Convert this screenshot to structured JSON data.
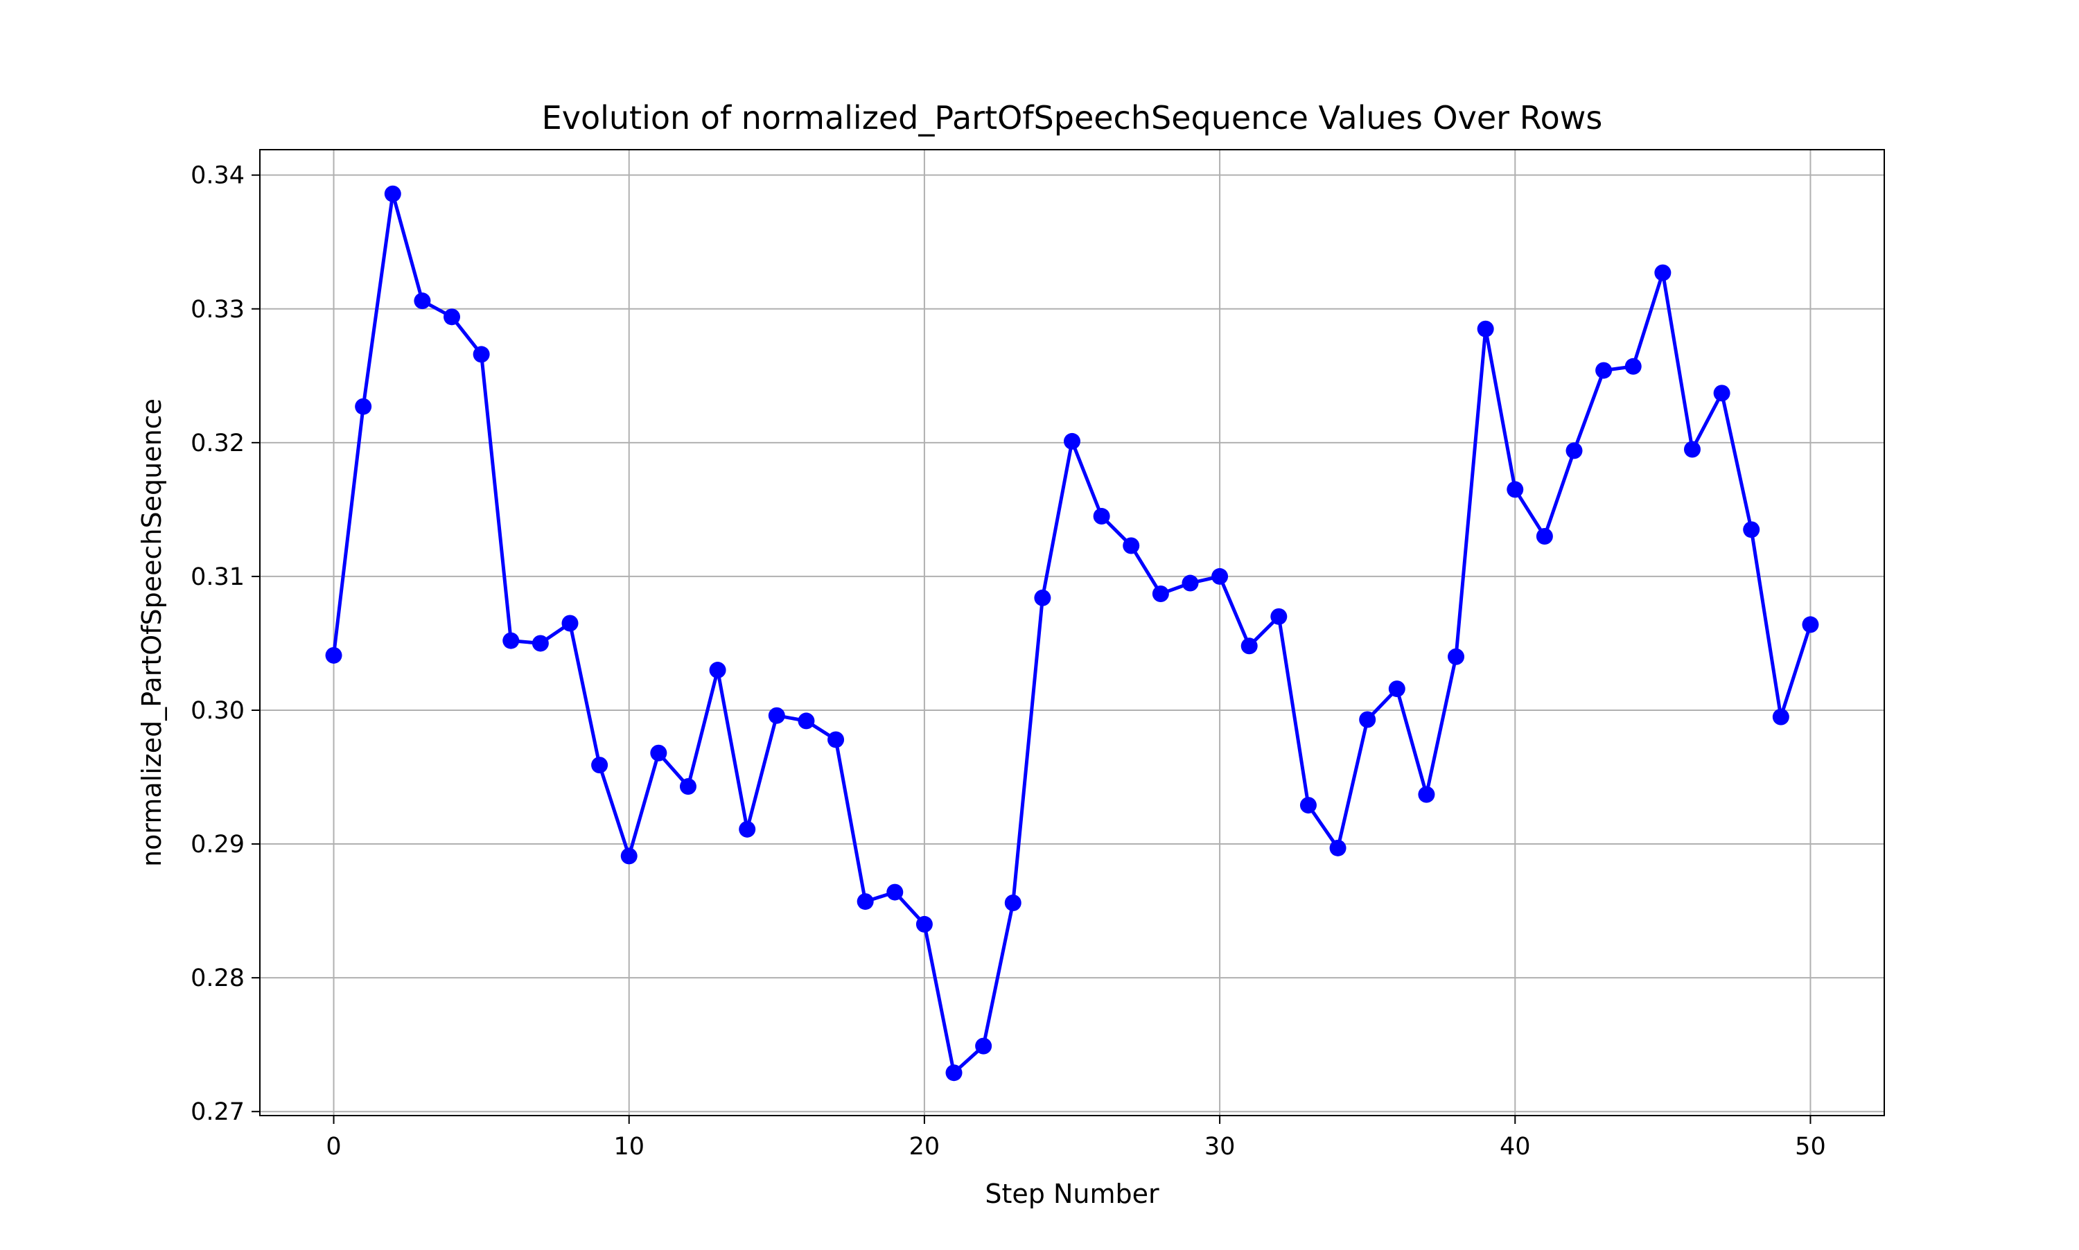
{
  "chart_data": {
    "type": "line",
    "title": "Evolution of normalized_PartOfSpeechSequence Values Over Rows",
    "xlabel": "Step Number",
    "ylabel": "normalized_PartOfSpeechSequence",
    "xlim": [
      -2.5,
      52.5
    ],
    "ylim": [
      0.2697,
      0.3419
    ],
    "xticks": [
      0,
      10,
      20,
      30,
      40,
      50
    ],
    "xtick_labels": [
      "0",
      "10",
      "20",
      "30",
      "40",
      "50"
    ],
    "yticks": [
      0.27,
      0.28,
      0.29,
      0.3,
      0.31,
      0.32,
      0.33,
      0.34
    ],
    "ytick_labels": [
      "0.27",
      "0.28",
      "0.29",
      "0.30",
      "0.31",
      "0.32",
      "0.33",
      "0.34"
    ],
    "grid": true,
    "legend": false,
    "color": "#0000ff",
    "series": [
      {
        "x": [
          0,
          1,
          2,
          3,
          4,
          5,
          6,
          7,
          8,
          9,
          10,
          11,
          12,
          13,
          14,
          15,
          16,
          17,
          18,
          19,
          20,
          21,
          22,
          23,
          24,
          25,
          26,
          27,
          28,
          29,
          30,
          31,
          32,
          33,
          34,
          35,
          36,
          37,
          38,
          39,
          40,
          41,
          42,
          43,
          44,
          45,
          46,
          47,
          48,
          49,
          50
        ],
        "values": [
          0.3041,
          0.3227,
          0.3386,
          0.3306,
          0.3294,
          0.3266,
          0.3052,
          0.305,
          0.3065,
          0.2959,
          0.2891,
          0.2968,
          0.2943,
          0.303,
          0.2911,
          0.2996,
          0.2992,
          0.2978,
          0.2857,
          0.2864,
          0.284,
          0.2729,
          0.2749,
          0.2856,
          0.3084,
          0.3201,
          0.3145,
          0.3123,
          0.3087,
          0.3095,
          0.31,
          0.3048,
          0.307,
          0.2929,
          0.2897,
          0.2993,
          0.3016,
          0.2937,
          0.304,
          0.3285,
          0.3165,
          0.313,
          0.3194,
          0.3254,
          0.3257,
          0.3327,
          0.3195,
          0.3237,
          0.3135,
          0.2995,
          0.3064
        ]
      }
    ]
  }
}
